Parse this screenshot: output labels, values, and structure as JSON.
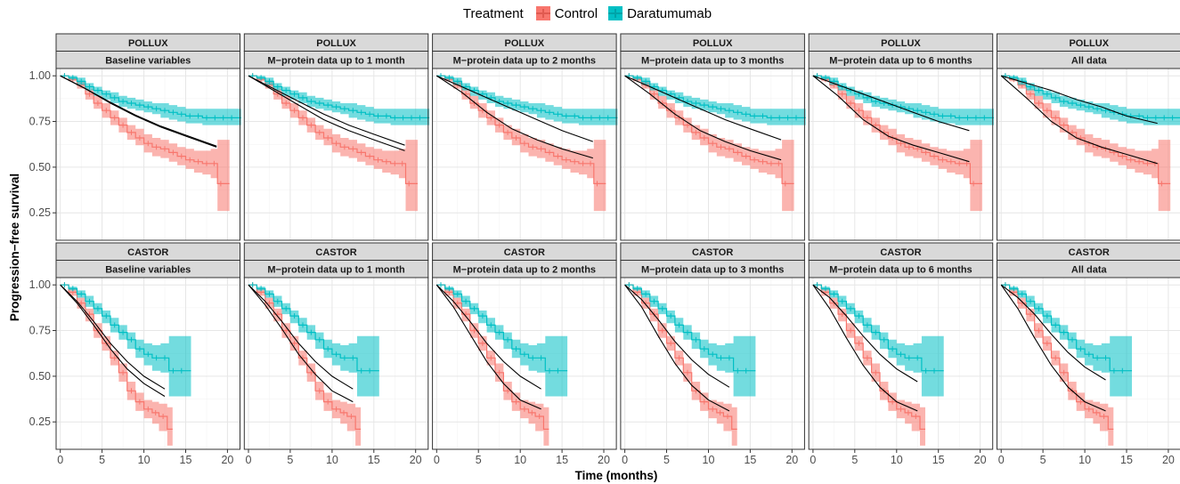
{
  "legend": {
    "title": "Treatment",
    "items": [
      {
        "label": "Control",
        "color": "#F8766D"
      },
      {
        "label": "Daratumumab",
        "color": "#00BFC4"
      }
    ]
  },
  "axes": {
    "xlabel": "Time (months)",
    "ylabel": "Progression−free survival"
  },
  "chart_data": {
    "type": "line",
    "xlabel": "Time (months)",
    "ylabel": "Progression−free survival",
    "xlim": [
      -0.5,
      21.5
    ],
    "x_ticks": [
      "0",
      "5",
      "10",
      "15",
      "20"
    ],
    "x_tick_values": [
      0,
      5,
      10,
      15,
      20
    ],
    "grid": true,
    "legend_position": "top",
    "legend_title": "Treatment",
    "series_colors": {
      "Control": "#F8766D",
      "Daratumumab": "#00BFC4",
      "Predicted": "#000000"
    },
    "rows": [
      {
        "strip": "POLLUX",
        "ylim": [
          0.1,
          1.04
        ],
        "y_ticks": [
          "1.00",
          "0.75",
          "0.50",
          "0.25"
        ],
        "y_tick_values": [
          1.0,
          0.75,
          0.5,
          0.25
        ],
        "series": [
          {
            "name": "Control",
            "x": [
              0,
              1,
              2,
              3,
              4,
              5,
              6,
              7,
              8,
              9,
              10,
              11,
              12,
              13,
              14,
              15,
              16,
              17,
              18,
              18.8,
              19.6
            ],
            "y": [
              1.0,
              0.98,
              0.95,
              0.9,
              0.85,
              0.81,
              0.77,
              0.73,
              0.69,
              0.66,
              0.63,
              0.61,
              0.6,
              0.58,
              0.56,
              0.54,
              0.53,
              0.52,
              0.52,
              0.41,
              0.41
            ],
            "upper": [
              1.0,
              0.99,
              0.97,
              0.93,
              0.89,
              0.85,
              0.81,
              0.77,
              0.73,
              0.71,
              0.68,
              0.66,
              0.65,
              0.63,
              0.61,
              0.6,
              0.59,
              0.59,
              0.6,
              0.65,
              0.65
            ],
            "lower": [
              1.0,
              0.97,
              0.93,
              0.87,
              0.82,
              0.77,
              0.73,
              0.69,
              0.65,
              0.62,
              0.58,
              0.56,
              0.55,
              0.53,
              0.51,
              0.49,
              0.47,
              0.46,
              0.44,
              0.26,
              0.26
            ]
          },
          {
            "name": "Daratumumab",
            "x": [
              0,
              1,
              2,
              3,
              4,
              5,
              6,
              7,
              8,
              9,
              10,
              11,
              12,
              13,
              14,
              15,
              16,
              17,
              18,
              19,
              20,
              21
            ],
            "y": [
              1.0,
              0.99,
              0.97,
              0.94,
              0.92,
              0.9,
              0.88,
              0.86,
              0.85,
              0.84,
              0.83,
              0.82,
              0.81,
              0.8,
              0.79,
              0.78,
              0.78,
              0.77,
              0.77,
              0.77,
              0.77,
              0.77
            ],
            "upper": [
              1.0,
              1.0,
              0.99,
              0.96,
              0.94,
              0.92,
              0.91,
              0.89,
              0.88,
              0.87,
              0.86,
              0.85,
              0.85,
              0.84,
              0.83,
              0.82,
              0.82,
              0.82,
              0.82,
              0.82,
              0.82,
              0.82
            ],
            "lower": [
              1.0,
              0.98,
              0.95,
              0.92,
              0.89,
              0.87,
              0.85,
              0.83,
              0.82,
              0.81,
              0.8,
              0.79,
              0.77,
              0.76,
              0.75,
              0.74,
              0.74,
              0.73,
              0.73,
              0.73,
              0.73,
              0.73
            ]
          }
        ]
      },
      {
        "strip": "CASTOR",
        "ylim": [
          0.1,
          1.04
        ],
        "y_ticks": [
          "1.00",
          "0.75",
          "0.50",
          "0.25"
        ],
        "y_tick_values": [
          1.0,
          0.75,
          0.5,
          0.25
        ],
        "series": [
          {
            "name": "Control",
            "x": [
              0,
              1,
              2,
              3,
              4,
              5,
              6,
              7,
              8,
              9,
              10,
              11,
              11.8,
              12.8
            ],
            "y": [
              1.0,
              0.96,
              0.9,
              0.84,
              0.75,
              0.68,
              0.6,
              0.52,
              0.42,
              0.36,
              0.32,
              0.3,
              0.28,
              0.21
            ],
            "upper": [
              1.0,
              0.98,
              0.93,
              0.87,
              0.79,
              0.72,
              0.64,
              0.57,
              0.47,
              0.41,
              0.37,
              0.36,
              0.35,
              0.33
            ],
            "lower": [
              1.0,
              0.94,
              0.87,
              0.8,
              0.71,
              0.64,
              0.56,
              0.47,
              0.37,
              0.31,
              0.27,
              0.24,
              0.2,
              0.12
            ]
          },
          {
            "name": "Daratumumab",
            "x": [
              0,
              1,
              2,
              3,
              4,
              5,
              6,
              7,
              8,
              9,
              10,
              11,
              12,
              13,
              14,
              15
            ],
            "y": [
              1.0,
              0.98,
              0.95,
              0.91,
              0.87,
              0.83,
              0.78,
              0.74,
              0.7,
              0.65,
              0.62,
              0.6,
              0.6,
              0.53,
              0.53,
              0.53
            ],
            "upper": [
              1.0,
              0.99,
              0.97,
              0.94,
              0.9,
              0.86,
              0.82,
              0.78,
              0.74,
              0.7,
              0.68,
              0.67,
              0.68,
              0.72,
              0.72,
              0.72
            ],
            "lower": [
              1.0,
              0.97,
              0.93,
              0.88,
              0.84,
              0.79,
              0.74,
              0.7,
              0.65,
              0.6,
              0.56,
              0.53,
              0.52,
              0.39,
              0.39,
              0.39
            ]
          }
        ]
      }
    ],
    "panels": [
      {
        "strip_top": "POLLUX",
        "strip_bottom": "Baseline variables",
        "row": 0,
        "col": 0,
        "predicted": [
          {
            "x": [
              0,
              3,
              6,
              9,
              12,
              15,
              18.7
            ],
            "y": [
              1.0,
              0.93,
              0.85,
              0.78,
              0.72,
              0.67,
              0.61
            ]
          },
          {
            "x": [
              0,
              3,
              6,
              9,
              12,
              15,
              18.7
            ],
            "y": [
              1.0,
              0.93,
              0.855,
              0.785,
              0.725,
              0.675,
              0.615
            ]
          }
        ]
      },
      {
        "strip_top": "POLLUX",
        "strip_bottom": "M−protein data up to 1 month",
        "row": 0,
        "col": 1,
        "predicted": [
          {
            "x": [
              0,
              3,
              6,
              9,
              12,
              15,
              18.7
            ],
            "y": [
              1.0,
              0.93,
              0.86,
              0.79,
              0.73,
              0.68,
              0.62
            ]
          },
          {
            "x": [
              0,
              3,
              6,
              9,
              12,
              15,
              18.7
            ],
            "y": [
              1.0,
              0.92,
              0.84,
              0.76,
              0.7,
              0.65,
              0.59
            ]
          }
        ]
      },
      {
        "strip_top": "POLLUX",
        "strip_bottom": "M−protein data up to 2 months",
        "row": 0,
        "col": 2,
        "predicted": [
          {
            "x": [
              0,
              3,
              6,
              9,
              12,
              15,
              18.7
            ],
            "y": [
              1.0,
              0.94,
              0.88,
              0.82,
              0.76,
              0.7,
              0.64
            ]
          },
          {
            "x": [
              0,
              3,
              6,
              9,
              12,
              15,
              18.7
            ],
            "y": [
              1.0,
              0.91,
              0.8,
              0.71,
              0.65,
              0.6,
              0.55
            ]
          }
        ]
      },
      {
        "strip_top": "POLLUX",
        "strip_bottom": "M−protein data up to 3 months",
        "row": 0,
        "col": 3,
        "predicted": [
          {
            "x": [
              0,
              3,
              6,
              9,
              12,
              15,
              18.7
            ],
            "y": [
              1.0,
              0.94,
              0.88,
              0.82,
              0.76,
              0.71,
              0.65
            ]
          },
          {
            "x": [
              0,
              3,
              6,
              9,
              12,
              15,
              18.7
            ],
            "y": [
              1.0,
              0.9,
              0.79,
              0.7,
              0.64,
              0.59,
              0.54
            ]
          }
        ]
      },
      {
        "strip_top": "POLLUX",
        "strip_bottom": "M−protein data up to 6 months",
        "row": 0,
        "col": 4,
        "predicted": [
          {
            "x": [
              0,
              3,
              6,
              9,
              12,
              15,
              18.7
            ],
            "y": [
              1.0,
              0.95,
              0.9,
              0.85,
              0.8,
              0.75,
              0.7
            ]
          },
          {
            "x": [
              0,
              3,
              6,
              9,
              12,
              15,
              18.7
            ],
            "y": [
              1.0,
              0.89,
              0.76,
              0.67,
              0.62,
              0.58,
              0.53
            ]
          }
        ]
      },
      {
        "strip_top": "POLLUX",
        "strip_bottom": "All data",
        "row": 0,
        "col": 5,
        "predicted": [
          {
            "x": [
              0,
              3,
              6,
              9,
              12,
              15,
              18.7
            ],
            "y": [
              1.0,
              0.96,
              0.92,
              0.87,
              0.83,
              0.78,
              0.74
            ]
          },
          {
            "x": [
              0,
              3,
              6,
              9,
              12,
              15,
              18.7
            ],
            "y": [
              1.0,
              0.88,
              0.75,
              0.66,
              0.61,
              0.57,
              0.52
            ]
          }
        ]
      },
      {
        "strip_top": "CASTOR",
        "strip_bottom": "Baseline variables",
        "row": 1,
        "col": 0,
        "predicted": [
          {
            "x": [
              0,
              2,
              4,
              6,
              8,
              10,
              12.5
            ],
            "y": [
              1.0,
              0.91,
              0.8,
              0.68,
              0.58,
              0.5,
              0.43
            ]
          },
          {
            "x": [
              0,
              2,
              4,
              6,
              8,
              10,
              12.5
            ],
            "y": [
              1.0,
              0.9,
              0.78,
              0.65,
              0.54,
              0.46,
              0.39
            ]
          }
        ]
      },
      {
        "strip_top": "CASTOR",
        "strip_bottom": "M−protein data up to 1 month",
        "row": 1,
        "col": 1,
        "predicted": [
          {
            "x": [
              0,
              2,
              4,
              6,
              8,
              10,
              12.5
            ],
            "y": [
              1.0,
              0.91,
              0.8,
              0.68,
              0.58,
              0.5,
              0.43
            ]
          },
          {
            "x": [
              0,
              2,
              4,
              6,
              8,
              10,
              12.5
            ],
            "y": [
              1.0,
              0.89,
              0.76,
              0.62,
              0.51,
              0.42,
              0.36
            ]
          }
        ]
      },
      {
        "strip_top": "CASTOR",
        "strip_bottom": "M−protein data up to 2 months",
        "row": 1,
        "col": 2,
        "predicted": [
          {
            "x": [
              0,
              2,
              4,
              6,
              8,
              10,
              12.5
            ],
            "y": [
              1.0,
              0.91,
              0.8,
              0.68,
              0.58,
              0.5,
              0.43
            ]
          },
          {
            "x": [
              0,
              2,
              4,
              6,
              8,
              10,
              12.5
            ],
            "y": [
              1.0,
              0.88,
              0.73,
              0.58,
              0.46,
              0.37,
              0.32
            ]
          }
        ]
      },
      {
        "strip_top": "CASTOR",
        "strip_bottom": "M−protein data up to 3 months",
        "row": 1,
        "col": 3,
        "predicted": [
          {
            "x": [
              0,
              2,
              4,
              6,
              8,
              10,
              12.5
            ],
            "y": [
              1.0,
              0.92,
              0.81,
              0.69,
              0.59,
              0.51,
              0.44
            ]
          },
          {
            "x": [
              0,
              2,
              4,
              6,
              8,
              10,
              12.5
            ],
            "y": [
              1.0,
              0.88,
              0.72,
              0.57,
              0.45,
              0.37,
              0.31
            ]
          }
        ]
      },
      {
        "strip_top": "CASTOR",
        "strip_bottom": "M−protein data up to 6 months",
        "row": 1,
        "col": 4,
        "predicted": [
          {
            "x": [
              0,
              2,
              4,
              6,
              8,
              10,
              12.5
            ],
            "y": [
              1.0,
              0.93,
              0.83,
              0.72,
              0.62,
              0.54,
              0.47
            ]
          },
          {
            "x": [
              0,
              2,
              4,
              6,
              8,
              10,
              12.5
            ],
            "y": [
              1.0,
              0.87,
              0.71,
              0.56,
              0.44,
              0.36,
              0.31
            ]
          }
        ]
      },
      {
        "strip_top": "CASTOR",
        "strip_bottom": "All data",
        "row": 1,
        "col": 5,
        "predicted": [
          {
            "x": [
              0,
              2,
              4,
              6,
              8,
              10,
              12.5
            ],
            "y": [
              1.0,
              0.93,
              0.84,
              0.73,
              0.63,
              0.55,
              0.48
            ]
          },
          {
            "x": [
              0,
              2,
              4,
              6,
              8,
              10,
              12.5
            ],
            "y": [
              1.0,
              0.87,
              0.71,
              0.56,
              0.44,
              0.36,
              0.31
            ]
          }
        ]
      }
    ]
  }
}
